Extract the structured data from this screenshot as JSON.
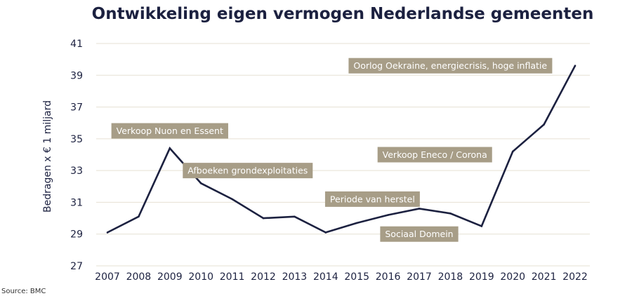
{
  "chart_data": {
    "type": "line",
    "title": "Ontwikkeling eigen vermogen Nederlandse gemeenten",
    "ylabel": "Bedragen x € 1 miljard",
    "xlabel": "",
    "categories": [
      "2007",
      "2008",
      "2009",
      "2010",
      "2011",
      "2012",
      "2013",
      "2014",
      "2015",
      "2016",
      "2017",
      "2018",
      "2019",
      "2020",
      "2021",
      "2022"
    ],
    "series": [
      {
        "values": [
          29.1,
          30.1,
          34.4,
          32.2,
          31.2,
          30.0,
          30.1,
          29.1,
          29.7,
          30.2,
          30.6,
          30.3,
          29.5,
          34.2,
          35.9,
          39.6
        ]
      }
    ],
    "ylim": [
      27,
      41
    ],
    "yticks": [
      27,
      29,
      31,
      33,
      35,
      37,
      39,
      41
    ],
    "grid": "horizontal",
    "colors": {
      "line": "#1c2140",
      "annotation_bg": "#a79d87",
      "grid": "#e6e1d3"
    },
    "annotations": [
      {
        "text": "Verkoop Nuon en Essent",
        "x": "2009",
        "y": 35.5
      },
      {
        "text": "Afboeken grondexploitaties",
        "x": "2011.5",
        "y": 33.0
      },
      {
        "text": "Periode van herstel",
        "x": "2015.5",
        "y": 31.2
      },
      {
        "text": "Sociaal Domein",
        "x": "2017",
        "y": 29.0
      },
      {
        "text": "Verkoop Eneco / Corona",
        "x": "2017.5",
        "y": 34.0
      },
      {
        "text": "Oorlog Oekraine, energiecrisis, hoge inflatie",
        "x": "2018",
        "y": 39.6
      }
    ]
  },
  "source": "Source: BMC"
}
